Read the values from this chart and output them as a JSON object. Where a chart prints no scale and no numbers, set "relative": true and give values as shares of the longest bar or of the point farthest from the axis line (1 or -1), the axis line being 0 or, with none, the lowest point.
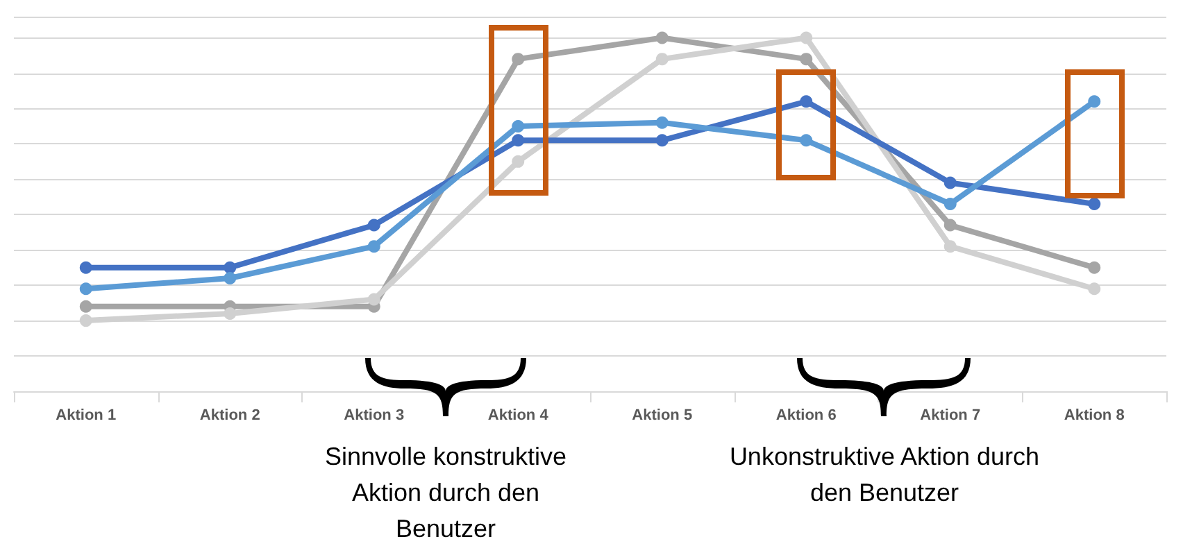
{
  "chart_data": {
    "type": "line",
    "relative": true,
    "grid": "y",
    "marker": "circle",
    "line_style": "solid",
    "legend": false,
    "categories": [
      "Aktion 1",
      "Aktion 2",
      "Aktion 3",
      "Aktion 4",
      "Aktion 5",
      "Aktion 6",
      "Aktion 7",
      "Aktion 8"
    ],
    "series": [
      {
        "color": "#a5a5a5",
        "values": [
          0.24,
          0.24,
          0.24,
          0.94,
          1,
          0.94,
          0.47,
          0.35
        ]
      },
      {
        "color": "#d0d0d0",
        "values": [
          0.2,
          0.22,
          0.26,
          0.65,
          0.94,
          1,
          0.41,
          0.29
        ]
      },
      {
        "color": "#4472c4",
        "values": [
          0.35,
          0.35,
          0.47,
          0.71,
          0.71,
          0.82,
          0.59,
          0.53
        ]
      },
      {
        "color": "#5b9bd5",
        "values": [
          0.29,
          0.32,
          0.41,
          0.75,
          0.76,
          0.71,
          0.53,
          0.82
        ]
      }
    ],
    "annotations": [
      "Sinnvolle konstruktive Aktion durch den Benutzer",
      "Unkonstruktive Aktion durch den Benutzer"
    ]
  }
}
